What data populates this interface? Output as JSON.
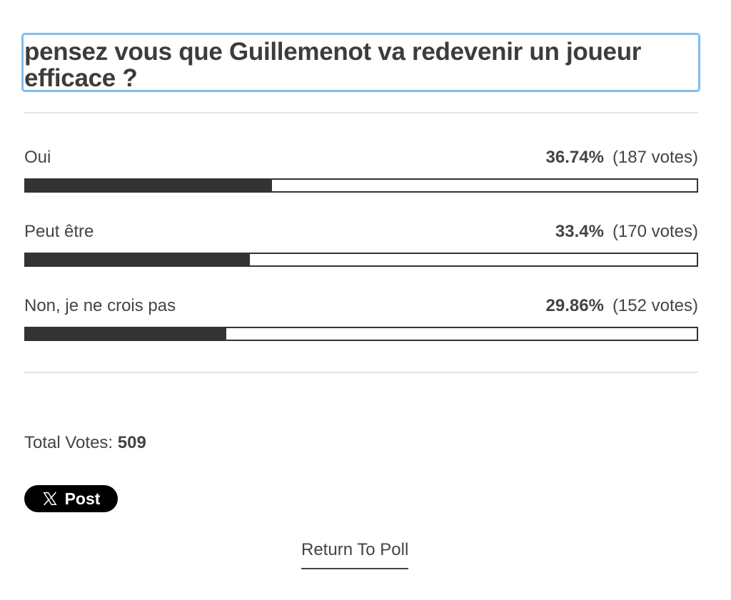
{
  "poll": {
    "question": "pensez vous que Guillemenot va redevenir un joueur efficace ?",
    "options": [
      {
        "label": "Oui",
        "percent_text": "36.74%",
        "votes_text": "(187 votes)",
        "fraction": 0.3674
      },
      {
        "label": "Peut être",
        "percent_text": "33.4%",
        "votes_text": "(170 votes)",
        "fraction": 0.334
      },
      {
        "label": "Non, je ne crois pas",
        "percent_text": "29.86%",
        "votes_text": "(152 votes)",
        "fraction": 0.2986
      }
    ],
    "total_label": "Total Votes:",
    "total_value": "509"
  },
  "share": {
    "post_label": "Post",
    "icon": "x-logo-icon"
  },
  "footer": {
    "return_label": "Return To Poll"
  },
  "colors": {
    "bar_fill": "#333333",
    "focus_outline": "#82bdf0",
    "post_button_bg": "#000000"
  }
}
